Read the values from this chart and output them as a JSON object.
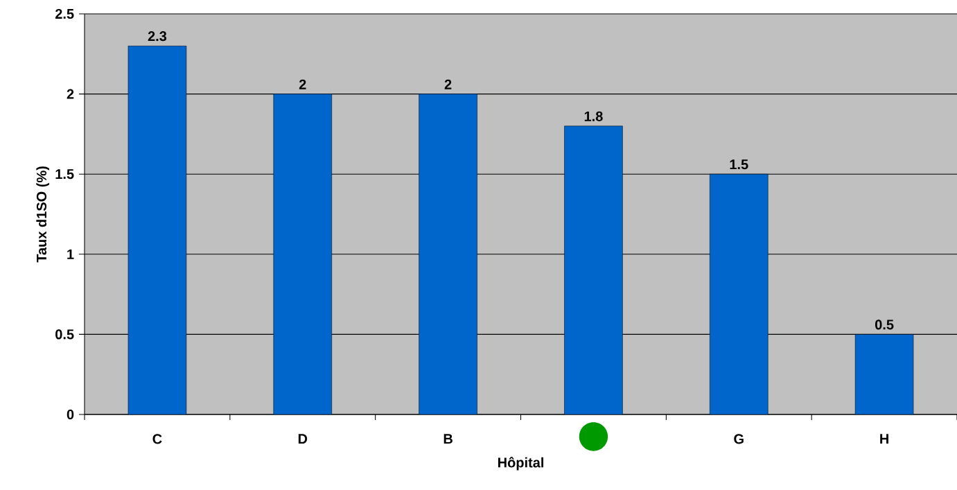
{
  "chart_data": {
    "type": "bar",
    "xlabel": "Hôpital",
    "ylabel": "Taux d1SO (%)",
    "categories": [
      "C",
      "D",
      "B",
      null,
      "G",
      "H"
    ],
    "values": [
      2.3,
      2,
      2,
      1.8,
      1.5,
      0.5
    ],
    "color": "#0066cc",
    "ylim": [
      0,
      2.5
    ],
    "yticks": [
      0,
      0.5,
      1,
      1.5,
      2,
      2.5
    ],
    "grid": "y",
    "data_labels": true
  }
}
